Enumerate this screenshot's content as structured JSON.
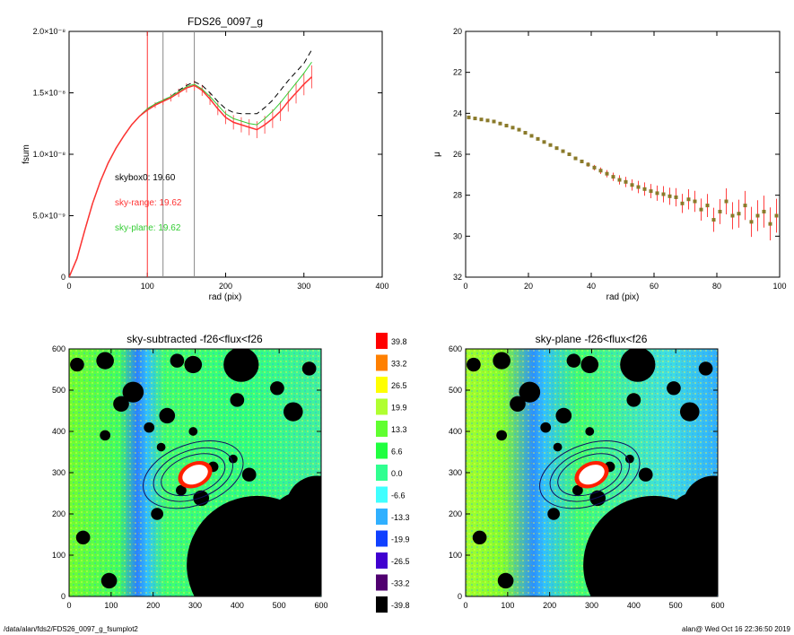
{
  "footer": {
    "path": "/data/alan/fds2/FDS26_0097_g_fsumplot2",
    "stamp": "alan@  Wed Oct 16 22:36:50 2019"
  },
  "colors": {
    "observed": "#000000",
    "sky_range": "#ff3333",
    "sky_plane": "#33cc33",
    "profile": "#8a7a2a"
  },
  "chart_data": [
    {
      "type": "line",
      "title": "FDS26_0097_g",
      "xlabel": "rad (pix)",
      "ylabel": "fsum",
      "xlim": [
        0,
        400
      ],
      "ylim": [
        0,
        2e-08
      ],
      "x_ticks": [
        "0",
        "100",
        "200",
        "300",
        "400"
      ],
      "y_ticks": [
        "0",
        "5.0×10⁻⁹",
        "1.0×10⁻⁸",
        "1.5×10⁻⁸",
        "2.0×10⁻⁸"
      ],
      "vlines": [
        100,
        120,
        160
      ],
      "annotations": [
        "skybox0: 19.60",
        "sky-range: 19.62",
        "sky-plane: 19.62"
      ],
      "x": [
        0,
        10,
        20,
        30,
        40,
        50,
        60,
        70,
        80,
        90,
        100,
        110,
        120,
        130,
        140,
        150,
        160,
        170,
        180,
        190,
        200,
        210,
        220,
        230,
        240,
        250,
        260,
        270,
        280,
        290,
        300,
        310
      ],
      "series": [
        {
          "values": [
            0,
            0.15,
            0.38,
            0.6,
            0.78,
            0.93,
            1.05,
            1.15,
            1.24,
            1.31,
            1.37,
            1.41,
            1.44,
            1.47,
            1.52,
            1.56,
            1.59,
            1.56,
            1.5,
            1.43,
            1.37,
            1.34,
            1.33,
            1.33,
            1.33,
            1.38,
            1.44,
            1.52,
            1.6,
            1.67,
            1.74,
            1.85
          ]
        },
        {
          "values": [
            0,
            0.15,
            0.38,
            0.6,
            0.78,
            0.93,
            1.05,
            1.15,
            1.24,
            1.31,
            1.36,
            1.4,
            1.43,
            1.46,
            1.5,
            1.54,
            1.56,
            1.52,
            1.45,
            1.37,
            1.3,
            1.26,
            1.24,
            1.22,
            1.2,
            1.24,
            1.29,
            1.35,
            1.43,
            1.5,
            1.57,
            1.63
          ]
        },
        {
          "values": [
            0,
            0.15,
            0.38,
            0.6,
            0.78,
            0.93,
            1.05,
            1.15,
            1.24,
            1.31,
            1.37,
            1.41,
            1.44,
            1.47,
            1.51,
            1.55,
            1.57,
            1.53,
            1.47,
            1.4,
            1.33,
            1.29,
            1.27,
            1.25,
            1.24,
            1.29,
            1.35,
            1.42,
            1.5,
            1.58,
            1.66,
            1.75
          ]
        }
      ]
    },
    {
      "type": "scatter",
      "xlabel": "rad (pix)",
      "ylabel": "μ",
      "xlim": [
        0,
        100
      ],
      "ylim": [
        32,
        20
      ],
      "x_ticks": [
        "0",
        "20",
        "40",
        "60",
        "80",
        "100"
      ],
      "y_ticks": [
        "20",
        "22",
        "24",
        "26",
        "28",
        "30",
        "32"
      ],
      "x": [
        1,
        3,
        5,
        7,
        9,
        11,
        13,
        15,
        17,
        19,
        21,
        23,
        25,
        27,
        29,
        31,
        33,
        35,
        37,
        39,
        41,
        43,
        45,
        47,
        49,
        51,
        53,
        55,
        57,
        59,
        61,
        63,
        65,
        67,
        69,
        71,
        73,
        75,
        77,
        79,
        81,
        83,
        85,
        87,
        89,
        91,
        93,
        95,
        97,
        99
      ],
      "y": [
        24.2,
        24.25,
        24.3,
        24.35,
        24.4,
        24.5,
        24.6,
        24.7,
        24.8,
        24.95,
        25.1,
        25.25,
        25.4,
        25.55,
        25.7,
        25.85,
        26.0,
        26.2,
        26.35,
        26.5,
        26.65,
        26.8,
        26.95,
        27.1,
        27.25,
        27.35,
        27.5,
        27.6,
        27.7,
        27.8,
        27.9,
        27.95,
        28.05,
        28.1,
        28.4,
        28.2,
        28.3,
        28.7,
        28.5,
        29.2,
        28.8,
        28.3,
        29.0,
        28.9,
        28.5,
        29.3,
        29.0,
        28.8,
        29.4,
        29.0
      ]
    },
    {
      "type": "heatmap",
      "title": "sky-subtracted -f26<flux<f26",
      "xlim": [
        0,
        630
      ],
      "ylim": [
        0,
        630
      ],
      "x_ticks": [
        "0",
        "100",
        "200",
        "300",
        "400",
        "500",
        "600"
      ],
      "y_ticks": [
        "0",
        "100",
        "200",
        "300",
        "400",
        "500",
        "600"
      ]
    },
    {
      "type": "heatmap",
      "title": "sky-plane -f26<flux<f26",
      "xlim": [
        0,
        630
      ],
      "ylim": [
        0,
        630
      ],
      "x_ticks": [
        "0",
        "100",
        "200",
        "300",
        "400",
        "500",
        "600"
      ],
      "y_ticks": [
        "0",
        "100",
        "200",
        "300",
        "400",
        "500",
        "600"
      ]
    }
  ],
  "colorbar": {
    "labels": [
      "39.8",
      "33.2",
      "26.5",
      "19.9",
      "13.3",
      "6.6",
      "0.0",
      "-6.6",
      "-13.3",
      "-19.9",
      "-26.5",
      "-33.2",
      "-39.8"
    ],
    "colors": [
      "#ff0000",
      "#ff8000",
      "#ffff00",
      "#b0ff30",
      "#60ff30",
      "#20ff40",
      "#30ff90",
      "#40ffff",
      "#30b0ff",
      "#1040ff",
      "#4000d0",
      "#500070",
      "#000000"
    ]
  }
}
